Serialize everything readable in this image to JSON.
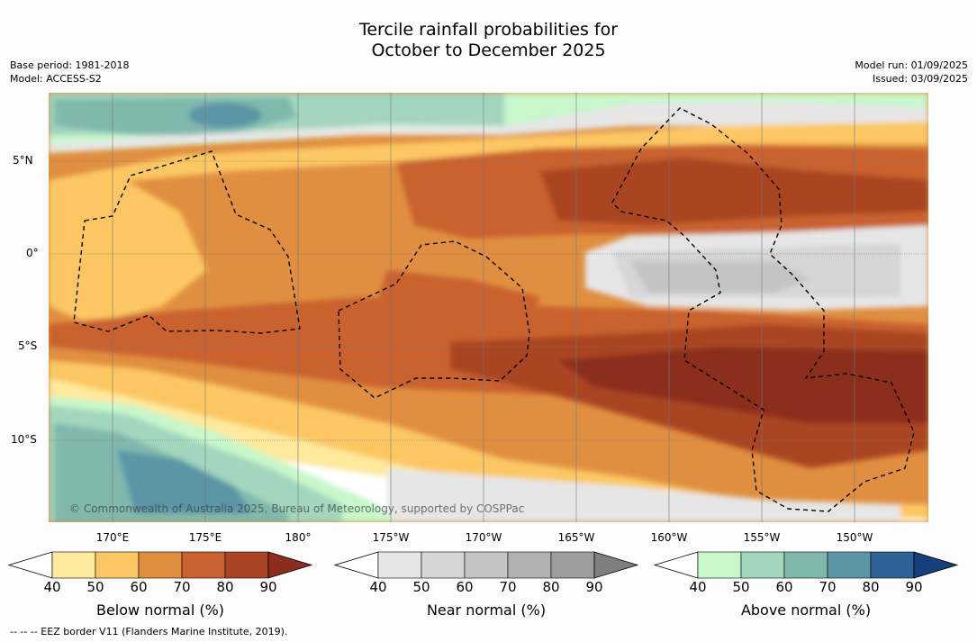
{
  "header": {
    "title_line1": "Tercile rainfall probabilities for",
    "title_line2": "October to December 2025",
    "base_period": "Base period: 1981-2018",
    "model": "Model: ACCESS-S2",
    "model_run": "Model run: 01/09/2025",
    "issued": "Issued: 03/09/2025"
  },
  "map": {
    "lat_labels": [
      "5°N",
      "0°",
      "5°S",
      "10°S"
    ],
    "lon_labels": [
      "170°E",
      "175°E",
      "180°",
      "175°W",
      "170°W",
      "165°W",
      "160°W",
      "155°W",
      "150°W"
    ],
    "copyright": "© Commonwealth of Australia 2025, Bureau of Meteorology, supported by COSPPac"
  },
  "colorbars": [
    {
      "title": "Below normal (%)",
      "ticks": [
        "40",
        "50",
        "60",
        "70",
        "80",
        "90"
      ],
      "colors": [
        "#ffffff",
        "#fee99d",
        "#fcc763",
        "#e08f40",
        "#c9622f",
        "#aa4424",
        "#8b2d1c"
      ]
    },
    {
      "title": "Near normal (%)",
      "ticks": [
        "40",
        "50",
        "60",
        "70",
        "80",
        "90"
      ],
      "colors": [
        "#ffffff",
        "#e6e6e6",
        "#d6d6d6",
        "#c4c4c4",
        "#b1b1b1",
        "#9e9e9e",
        "#7f7f7f"
      ]
    },
    {
      "title": "Above normal (%)",
      "ticks": [
        "40",
        "50",
        "60",
        "70",
        "80",
        "90"
      ],
      "colors": [
        "#ffffff",
        "#c7f7cb",
        "#a3d6bd",
        "#80b8ae",
        "#5c95a6",
        "#2f6296",
        "#173f7c"
      ]
    }
  ],
  "footnote": "--  --  -- EEZ border V11 (Flanders Marine Institute, 2019)."
}
